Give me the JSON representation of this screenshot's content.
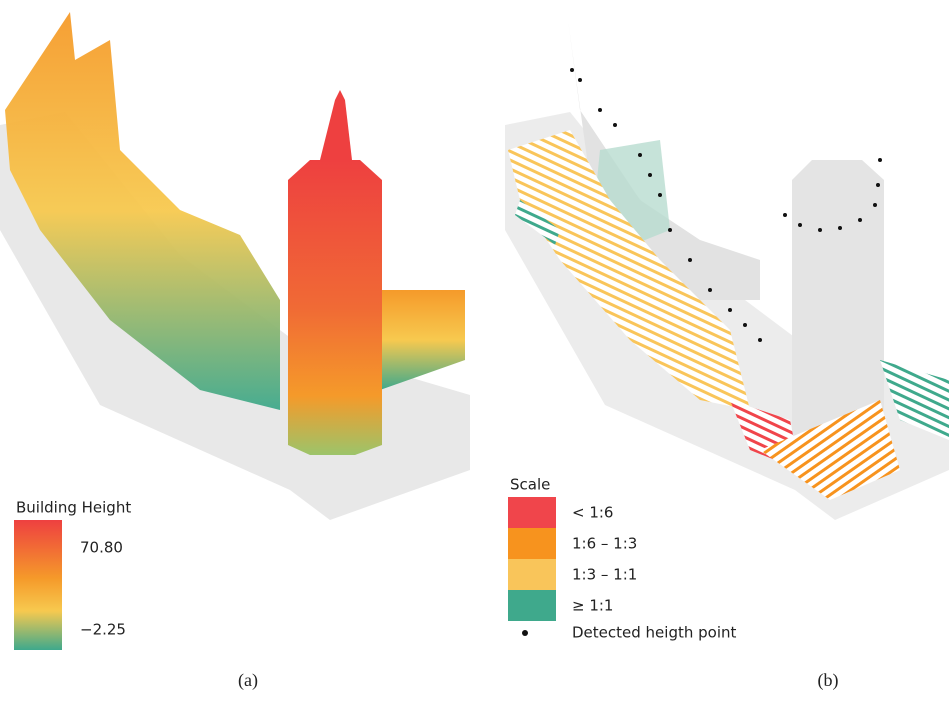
{
  "panel_a": {
    "legend_title": "Building Height",
    "max_label": "70.80",
    "min_label": "−2.25",
    "caption": "(a)"
  },
  "panel_b": {
    "legend_title": "Scale",
    "items": [
      {
        "label": "< 1:6",
        "color": "#f0454b"
      },
      {
        "label": "1:6 – 1:3",
        "color": "#f7931e"
      },
      {
        "label": "1:3 – 1:1",
        "color": "#f9c55a"
      },
      {
        "label": "≥ 1:1",
        "color": "#3fa98c"
      }
    ],
    "point_label": "Detected heigth point",
    "caption": "(b)"
  }
}
